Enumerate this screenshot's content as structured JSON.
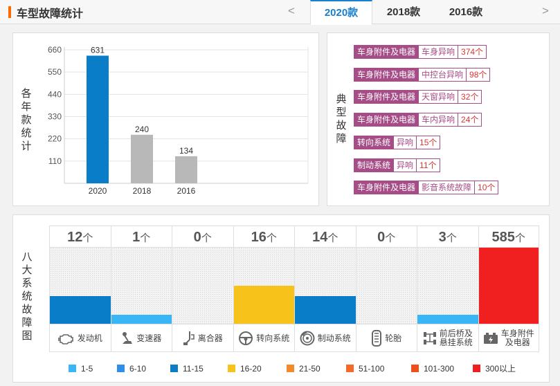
{
  "header": {
    "title": "车型故障统计",
    "prev_arrow": "<",
    "next_arrow": ">",
    "tabs": [
      {
        "label": "2020款",
        "active": true
      },
      {
        "label": "2018款",
        "active": false
      },
      {
        "label": "2016款",
        "active": false
      }
    ]
  },
  "yearly": {
    "side_label": [
      "各",
      "年",
      "款",
      "统",
      "计"
    ],
    "chart_data": {
      "type": "bar",
      "categories": [
        "2020",
        "2018",
        "2016"
      ],
      "values": [
        631,
        240,
        134
      ],
      "colors": [
        "#0a7dc9",
        "#b8b8b8",
        "#b8b8b8"
      ],
      "yticks": [
        110,
        220,
        330,
        440,
        550,
        660
      ],
      "ylim": [
        0,
        660
      ]
    }
  },
  "faults": {
    "side_label": [
      "典",
      "型",
      "故",
      "障"
    ],
    "items": [
      {
        "category": "车身附件及电器",
        "issue": "车身异响",
        "count": "374个"
      },
      {
        "category": "车身附件及电器",
        "issue": "中控台异响",
        "count": "98个"
      },
      {
        "category": "车身附件及电器",
        "issue": "天窗异响",
        "count": "32个"
      },
      {
        "category": "车身附件及电器",
        "issue": "车内异响",
        "count": "24个"
      },
      {
        "category": "转向系统",
        "issue": "异响",
        "count": "15个"
      },
      {
        "category": "制动系统",
        "issue": "异响",
        "count": "11个"
      },
      {
        "category": "车身附件及电器",
        "issue": "影音系统故障",
        "count": "10个"
      }
    ]
  },
  "systems": {
    "side_label": [
      "八",
      "大",
      "系",
      "统",
      "故",
      "障",
      "图"
    ],
    "unit": "个",
    "items": [
      {
        "name": "发动机",
        "count": "12",
        "color": "#0a7dc9",
        "level": 0.36,
        "icon": "engine-icon"
      },
      {
        "name": "变速器",
        "count": "1",
        "color": "#38b6f5",
        "level": 0.12,
        "icon": "gear-shift-icon"
      },
      {
        "name": "离合器",
        "count": "0",
        "color": "",
        "level": 0,
        "icon": "clutch-pedal-icon"
      },
      {
        "name": "转向系统",
        "count": "16",
        "color": "#f7c21a",
        "level": 0.5,
        "icon": "steering-wheel-icon"
      },
      {
        "name": "制动系统",
        "count": "14",
        "color": "#0a7dc9",
        "level": 0.36,
        "icon": "brake-disc-icon"
      },
      {
        "name": "轮胎",
        "count": "0",
        "color": "",
        "level": 0,
        "icon": "tire-icon"
      },
      {
        "name": "前后桥及悬挂系统",
        "name_lines": [
          "前后桥及",
          "悬挂系统"
        ],
        "count": "3",
        "color": "#38b6f5",
        "level": 0.12,
        "icon": "axle-icon"
      },
      {
        "name": "车身附件及电器",
        "name_lines": [
          "车身附件",
          "及电器"
        ],
        "count": "585",
        "color": "#f02020",
        "level": 1.0,
        "icon": "battery-icon"
      }
    ],
    "legend": [
      {
        "label": "1-5",
        "color": "#38b6f5"
      },
      {
        "label": "6-10",
        "color": "#2f8fe8"
      },
      {
        "label": "11-15",
        "color": "#0a7dc9"
      },
      {
        "label": "16-20",
        "color": "#f7c21a"
      },
      {
        "label": "21-50",
        "color": "#f28a2a"
      },
      {
        "label": "51-100",
        "color": "#f26a26"
      },
      {
        "label": "101-300",
        "color": "#f04e18"
      },
      {
        "label": "300以上",
        "color": "#f02020"
      }
    ]
  }
}
